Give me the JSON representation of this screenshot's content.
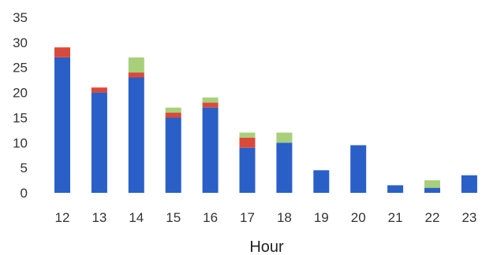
{
  "chart_data": {
    "type": "bar",
    "stacked": true,
    "title": "",
    "xlabel": "Hour",
    "ylabel": "",
    "ylim": [
      0,
      35
    ],
    "yticks": [
      0,
      5,
      10,
      15,
      20,
      25,
      30,
      35
    ],
    "grid": false,
    "legend": "none",
    "categories": [
      "12",
      "13",
      "14",
      "15",
      "16",
      "17",
      "18",
      "19",
      "20",
      "21",
      "22",
      "23"
    ],
    "series": [
      {
        "color": "#2a5fc8",
        "values": [
          27,
          20,
          23,
          15,
          17,
          9,
          10,
          4.5,
          9.5,
          1.5,
          1,
          3.5
        ]
      },
      {
        "color": "#d94a3a",
        "values": [
          2,
          1,
          1,
          1,
          1,
          2,
          0,
          0,
          0,
          0,
          0,
          0
        ]
      },
      {
        "color": "#a8d07a",
        "values": [
          0,
          0,
          3,
          1,
          1,
          1,
          2,
          0,
          0,
          0,
          1.5,
          0
        ]
      }
    ]
  }
}
